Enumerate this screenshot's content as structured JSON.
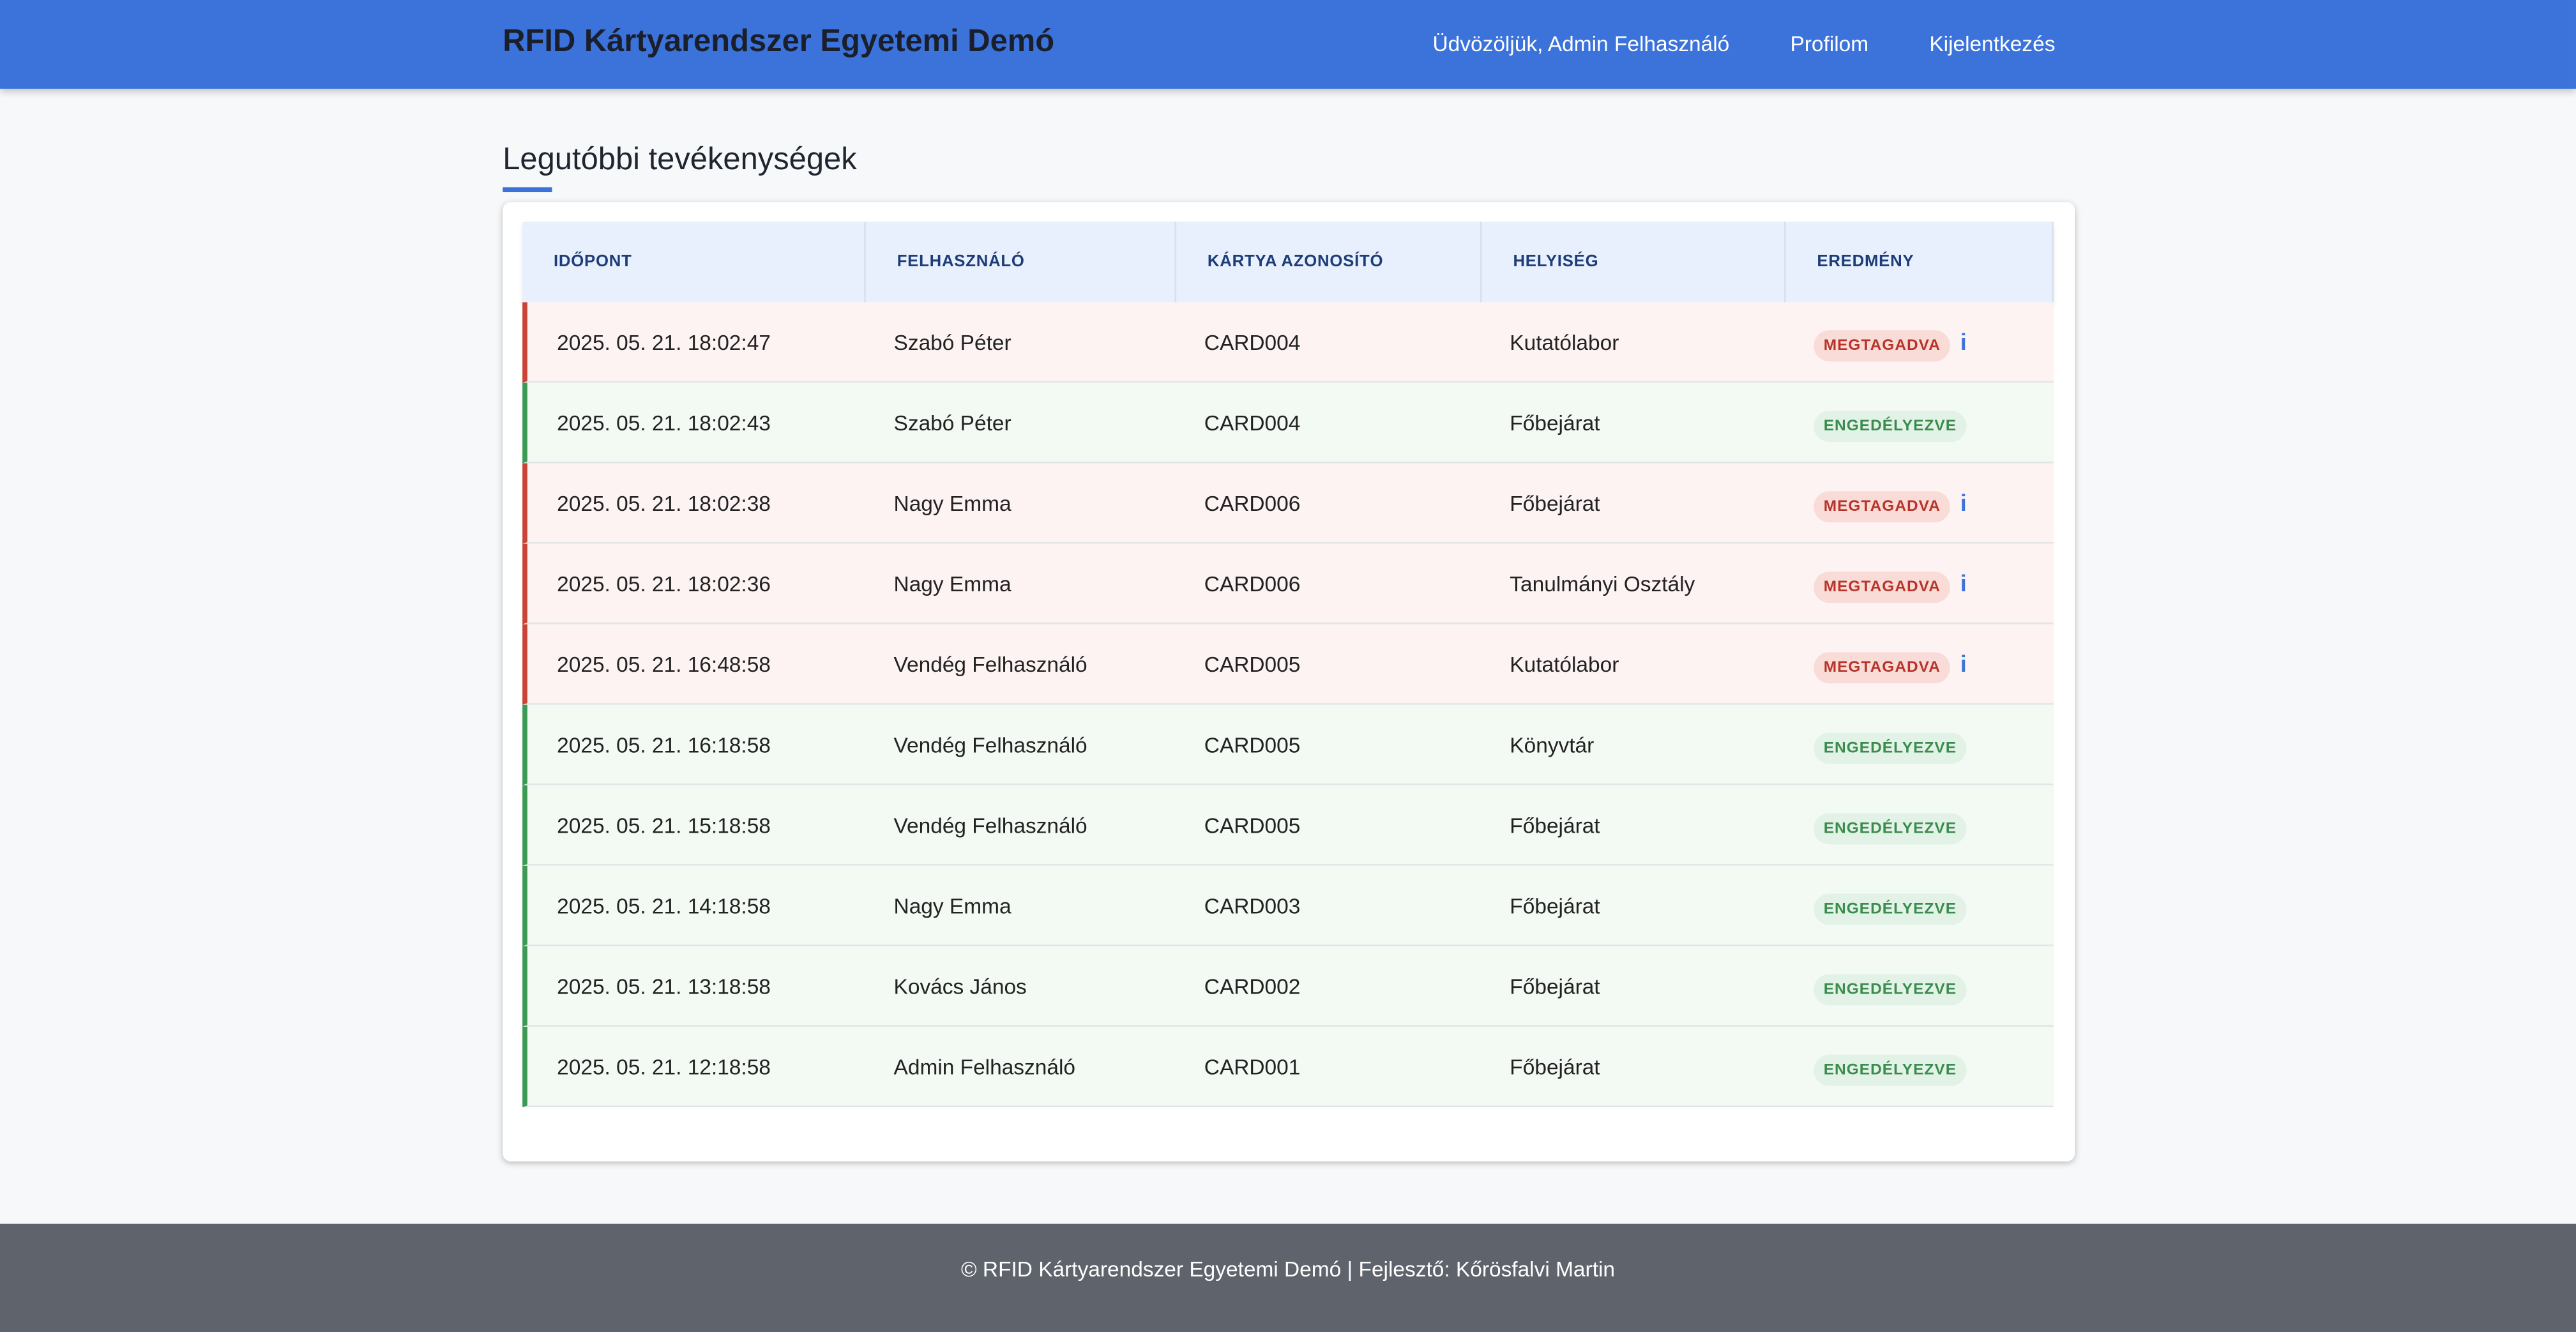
{
  "header": {
    "title": "RFID Kártyarendszer Egyetemi Demó",
    "nav": [
      "Üdvözöljük, Admin Felhasználó",
      "Profilom",
      "Kijelentkezés"
    ]
  },
  "section": {
    "title": "Legutóbbi tevékenységek"
  },
  "table": {
    "columns": [
      "IDŐPONT",
      "FELHASZNÁLÓ",
      "KÁRTYA AZONOSÍTÓ",
      "HELYISÉG",
      "EREDMÉNY"
    ],
    "rows": [
      {
        "cells": [
          "2025. 05. 21. 18:02:47",
          "Szabó Péter",
          "CARD004",
          "Kutatólabor",
          "MEGTAGADVA"
        ],
        "info": "i"
      },
      {
        "cells": [
          "2025. 05. 21. 18:02:43",
          "Szabó Péter",
          "CARD004",
          "Főbejárat",
          "ENGEDÉLYEZVE"
        ]
      },
      {
        "cells": [
          "2025. 05. 21. 18:02:38",
          "Nagy Emma",
          "CARD006",
          "Főbejárat",
          "MEGTAGADVA"
        ],
        "info": "i"
      },
      {
        "cells": [
          "2025. 05. 21. 18:02:36",
          "Nagy Emma",
          "CARD006",
          "Tanulmányi Osztály",
          "MEGTAGADVA"
        ],
        "info": "i"
      },
      {
        "cells": [
          "2025. 05. 21. 16:48:58",
          "Vendég Felhasználó",
          "CARD005",
          "Kutatólabor",
          "MEGTAGADVA"
        ],
        "info": "i"
      },
      {
        "cells": [
          "2025. 05. 21. 16:18:58",
          "Vendég Felhasználó",
          "CARD005",
          "Könyvtár",
          "ENGEDÉLYEZVE"
        ]
      },
      {
        "cells": [
          "2025. 05. 21. 15:18:58",
          "Vendég Felhasználó",
          "CARD005",
          "Főbejárat",
          "ENGEDÉLYEZVE"
        ]
      },
      {
        "cells": [
          "2025. 05. 21. 14:18:58",
          "Nagy Emma",
          "CARD003",
          "Főbejárat",
          "ENGEDÉLYEZVE"
        ]
      },
      {
        "cells": [
          "2025. 05. 21. 13:18:58",
          "Kovács János",
          "CARD002",
          "Főbejárat",
          "ENGEDÉLYEZVE"
        ]
      },
      {
        "cells": [
          "2025. 05. 21. 12:18:58",
          "Admin Felhasználó",
          "CARD001",
          "Főbejárat",
          "ENGEDÉLYEZVE"
        ]
      }
    ]
  },
  "footer": {
    "text": "© RFID Kártyarendszer Egyetemi Demó | Fejlesztő: Kőrösfalvi Martin"
  }
}
